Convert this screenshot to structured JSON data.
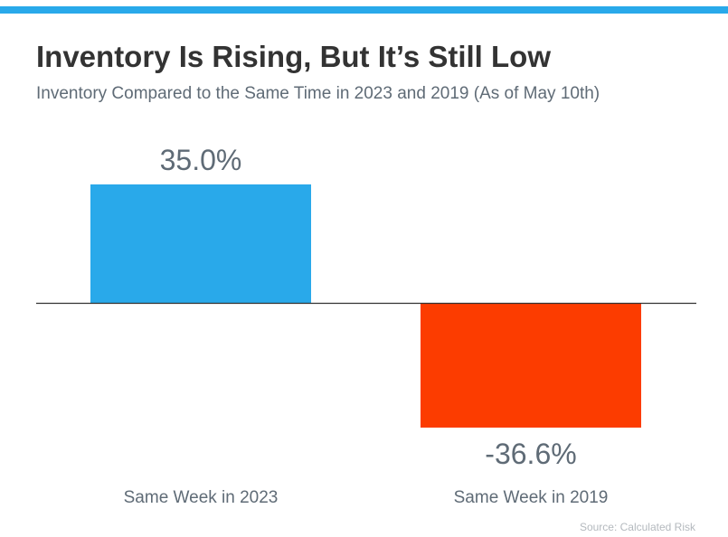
{
  "title": "Inventory Is Rising, But It’s Still Low",
  "subtitle": "Inventory Compared to the Same Time in 2023 and 2019 (As of May 10th)",
  "source": "Source: Calculated Risk",
  "colors": {
    "accent": "#29a9ea",
    "positive": "#29a9ea",
    "negative": "#fc3c00",
    "text": "#5f6b76",
    "title": "#333333"
  },
  "chart_data": {
    "type": "bar",
    "title": "Inventory Is Rising, But It’s Still Low",
    "subtitle": "Inventory Compared to the Same Time in 2023 and 2019 (As of May 10th)",
    "categories": [
      "Same Week in 2023",
      "Same Week in 2019"
    ],
    "values": [
      35.0,
      -36.6
    ],
    "data_labels": [
      "35.0%",
      "-36.6%"
    ],
    "unit": "%",
    "xlabel": "",
    "ylabel": "",
    "ylim": [
      -36.6,
      35.0
    ],
    "grid": false,
    "legend": "none",
    "baseline": 0
  }
}
